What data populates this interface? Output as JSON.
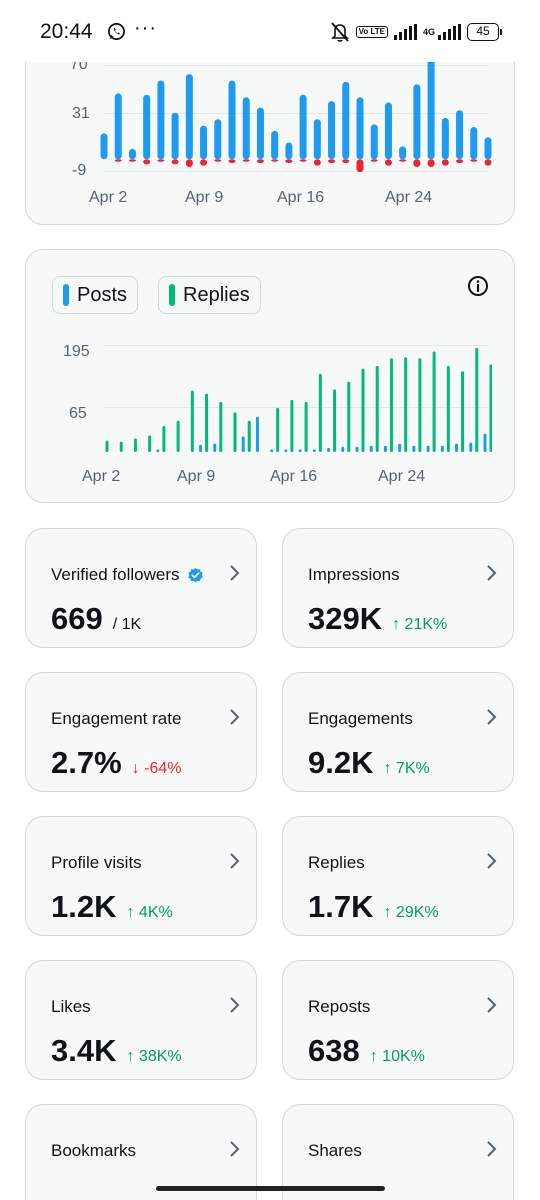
{
  "status_bar": {
    "time": "20:44",
    "volte_label": "Vo LTE",
    "network": "4G",
    "battery": "45",
    "icons": [
      "whatsapp-icon",
      "more-dots-icon",
      "mute-icon",
      "signal-icon",
      "battery-icon"
    ]
  },
  "chart1": {
    "y_ticks": [
      "70",
      "31",
      "-9"
    ],
    "x_labels": [
      "Apr 2",
      "Apr 9",
      "Apr 16",
      "Apr 24"
    ]
  },
  "chart2": {
    "legend_posts": "Posts",
    "legend_replies": "Replies",
    "y_ticks": [
      "195",
      "65"
    ],
    "x_labels": [
      "Apr 2",
      "Apr 9",
      "Apr 16",
      "Apr 24"
    ]
  },
  "chart_data": [
    {
      "type": "bar",
      "categories": [
        "Apr 2",
        "Apr 3",
        "Apr 4",
        "Apr 5",
        "Apr 6",
        "Apr 7",
        "Apr 8",
        "Apr 9",
        "Apr 10",
        "Apr 11",
        "Apr 12",
        "Apr 13",
        "Apr 14",
        "Apr 15",
        "Apr 16",
        "Apr 17",
        "Apr 18",
        "Apr 19",
        "Apr 20",
        "Apr 21",
        "Apr 22",
        "Apr 23",
        "Apr 24",
        "Apr 25",
        "Apr 26",
        "Apr 27",
        "Apr 28",
        "Apr 29"
      ],
      "series": [
        {
          "values": [
            20,
            51,
            8,
            50,
            61,
            36,
            66,
            26,
            31,
            61,
            48,
            40,
            22,
            13,
            50,
            31,
            45,
            60,
            48,
            27,
            44,
            10,
            58,
            80,
            32,
            38,
            25,
            17
          ],
          "color": "#1d9bf0"
        },
        {
          "values": [
            0,
            -2,
            -2,
            -4,
            -2,
            -4,
            -6,
            -5,
            -2,
            -3,
            -2,
            -3,
            -2,
            -3,
            -2,
            -5,
            -3,
            -3,
            -10,
            -2,
            -5,
            -2,
            -6,
            -6,
            -5,
            -3,
            -2,
            -5
          ],
          "color": "#f4212e"
        }
      ],
      "yticks": [
        70,
        31,
        -9
      ],
      "ylim": [
        -13,
        80
      ],
      "xtick_labels": [
        "Apr 2",
        "Apr 9",
        "Apr 16",
        "Apr 24"
      ]
    },
    {
      "type": "bar",
      "categories": [
        "Apr 2",
        "Apr 3",
        "Apr 4",
        "Apr 5",
        "Apr 6",
        "Apr 7",
        "Apr 8",
        "Apr 9",
        "Apr 10",
        "Apr 11",
        "Apr 12",
        "Apr 13",
        "Apr 14",
        "Apr 15",
        "Apr 16",
        "Apr 17",
        "Apr 18",
        "Apr 19",
        "Apr 20",
        "Apr 21",
        "Apr 22",
        "Apr 23",
        "Apr 24",
        "Apr 25",
        "Apr 26",
        "Apr 27",
        "Apr 28",
        "Apr 29"
      ],
      "series": [
        {
          "name": "Posts",
          "values": [
            0,
            0,
            0,
            0,
            5,
            0,
            0,
            14,
            16,
            0,
            30,
            68,
            5,
            5,
            5,
            5,
            8,
            10,
            10,
            12,
            12,
            16,
            12,
            12,
            12,
            16,
            18,
            35
          ],
          "color": "#1d9bf0"
        },
        {
          "name": "Replies",
          "values": [
            22,
            20,
            26,
            32,
            50,
            60,
            118,
            112,
            96,
            76,
            60,
            0,
            85,
            100,
            96,
            150,
            120,
            135,
            160,
            165,
            180,
            182,
            180,
            193,
            165,
            155,
            200,
            168
          ],
          "color": "#00ba7c"
        }
      ],
      "yticks": [
        195,
        65
      ],
      "ylim": [
        0,
        215
      ],
      "xtick_labels": [
        "Apr 2",
        "Apr 9",
        "Apr 16",
        "Apr 24"
      ]
    }
  ],
  "stats": [
    {
      "title": "Verified followers",
      "value": "669",
      "sub": "/ 1K",
      "delta": "",
      "direction": "",
      "verified": true
    },
    {
      "title": "Impressions",
      "value": "329K",
      "sub": "",
      "delta": "↑ 21K%",
      "direction": "up",
      "verified": false
    },
    {
      "title": "Engagement rate",
      "value": "2.7%",
      "sub": "",
      "delta": "↓ -64%",
      "direction": "down",
      "verified": false
    },
    {
      "title": "Engagements",
      "value": "9.2K",
      "sub": "",
      "delta": "↑ 7K%",
      "direction": "up",
      "verified": false
    },
    {
      "title": "Profile visits",
      "value": "1.2K",
      "sub": "",
      "delta": "↑ 4K%",
      "direction": "up",
      "verified": false
    },
    {
      "title": "Replies",
      "value": "1.7K",
      "sub": "",
      "delta": "↑ 29K%",
      "direction": "up",
      "verified": false
    },
    {
      "title": "Likes",
      "value": "3.4K",
      "sub": "",
      "delta": "↑ 38K%",
      "direction": "up",
      "verified": false
    },
    {
      "title": "Reposts",
      "value": "638",
      "sub": "",
      "delta": "↑ 10K%",
      "direction": "up",
      "verified": false
    },
    {
      "title": "Bookmarks",
      "value": "",
      "sub": "",
      "delta": "",
      "direction": "",
      "verified": false
    },
    {
      "title": "Shares",
      "value": "",
      "sub": "",
      "delta": "",
      "direction": "",
      "verified": false
    }
  ]
}
